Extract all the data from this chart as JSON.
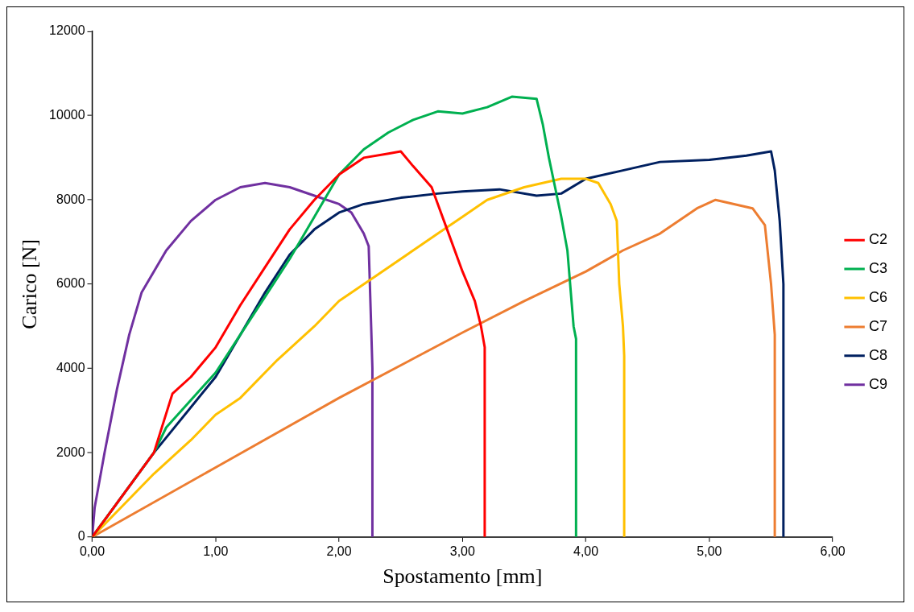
{
  "chart_data": {
    "type": "line",
    "xlabel": "Spostamento [mm]",
    "ylabel": "Carico [N]",
    "xlim": [
      0,
      6
    ],
    "xticks": [
      {
        "value": 0,
        "label": "0,00"
      },
      {
        "value": 1,
        "label": "1,00"
      },
      {
        "value": 2,
        "label": "2,00"
      },
      {
        "value": 3,
        "label": "3,00"
      },
      {
        "value": 4,
        "label": "4,00"
      },
      {
        "value": 5,
        "label": "5,00"
      },
      {
        "value": 6,
        "label": "6,00"
      }
    ],
    "ylim": [
      0,
      12000
    ],
    "yticks": [
      0,
      2000,
      4000,
      6000,
      8000,
      10000,
      12000
    ],
    "grid": false,
    "legend": "right",
    "marker": "none",
    "line_style": "solid",
    "series": [
      {
        "name": "C2",
        "color": "#ff0000",
        "x": [
          0,
          0.5,
          0.65,
          0.8,
          1.0,
          1.2,
          1.4,
          1.6,
          1.8,
          2.0,
          2.2,
          2.4,
          2.5,
          2.6,
          2.75,
          2.85,
          3.0,
          3.1,
          3.15,
          3.18,
          3.18
        ],
        "values": [
          0,
          2000,
          3400,
          3800,
          4500,
          5500,
          6400,
          7300,
          8000,
          8600,
          9000,
          9100,
          9150,
          8800,
          8300,
          7500,
          6300,
          5600,
          5000,
          4500,
          0
        ]
      },
      {
        "name": "C3",
        "color": "#00b050",
        "x": [
          0,
          0.5,
          0.6,
          1.0,
          1.2,
          1.4,
          1.6,
          1.8,
          2.0,
          2.2,
          2.4,
          2.6,
          2.8,
          3.0,
          3.2,
          3.4,
          3.6,
          3.65,
          3.7,
          3.75,
          3.8,
          3.85,
          3.9,
          3.92,
          3.92
        ],
        "values": [
          0,
          2000,
          2600,
          3900,
          4800,
          5700,
          6600,
          7600,
          8600,
          9200,
          9600,
          9900,
          10100,
          10050,
          10200,
          10450,
          10400,
          9800,
          9000,
          8300,
          7600,
          6800,
          5000,
          4700,
          0
        ]
      },
      {
        "name": "C6",
        "color": "#ffc000",
        "x": [
          0,
          0.5,
          0.8,
          1.0,
          1.2,
          1.5,
          1.8,
          2.0,
          2.3,
          2.6,
          2.8,
          3.0,
          3.2,
          3.5,
          3.8,
          4.0,
          4.1,
          4.2,
          4.25,
          4.27,
          4.3,
          4.31,
          4.31
        ],
        "values": [
          0,
          1500,
          2300,
          2900,
          3300,
          4200,
          5000,
          5600,
          6200,
          6800,
          7200,
          7600,
          8000,
          8300,
          8500,
          8500,
          8400,
          7900,
          7500,
          6000,
          5000,
          4300,
          0
        ]
      },
      {
        "name": "C7",
        "color": "#ed7d31",
        "x": [
          0,
          1.0,
          2.0,
          3.0,
          3.5,
          4.0,
          4.3,
          4.6,
          4.9,
          5.05,
          5.2,
          5.35,
          5.45,
          5.5,
          5.53,
          5.53
        ],
        "values": [
          0,
          1650,
          3300,
          4850,
          5600,
          6300,
          6800,
          7200,
          7800,
          8000,
          7900,
          7800,
          7400,
          6000,
          4800,
          0
        ]
      },
      {
        "name": "C8",
        "color": "#002060",
        "x": [
          0,
          0.5,
          1.0,
          1.2,
          1.4,
          1.6,
          1.8,
          2.0,
          2.2,
          2.5,
          2.8,
          3.0,
          3.3,
          3.6,
          3.8,
          4.0,
          4.3,
          4.6,
          5.0,
          5.3,
          5.5,
          5.53,
          5.57,
          5.6,
          5.6
        ],
        "values": [
          0,
          2000,
          3800,
          4800,
          5800,
          6700,
          7300,
          7700,
          7900,
          8050,
          8150,
          8200,
          8250,
          8100,
          8150,
          8500,
          8700,
          8900,
          8950,
          9050,
          9150,
          8700,
          7500,
          6000,
          0
        ]
      },
      {
        "name": "C9",
        "color": "#7030a0",
        "x": [
          0,
          0.02,
          0.1,
          0.2,
          0.3,
          0.4,
          0.6,
          0.8,
          1.0,
          1.2,
          1.4,
          1.6,
          1.8,
          2.0,
          2.1,
          2.2,
          2.24,
          2.26,
          2.27,
          2.27
        ],
        "values": [
          0,
          700,
          2000,
          3500,
          4800,
          5800,
          6800,
          7500,
          8000,
          8300,
          8400,
          8300,
          8100,
          7900,
          7700,
          7200,
          6900,
          5000,
          4000,
          0
        ]
      }
    ]
  }
}
